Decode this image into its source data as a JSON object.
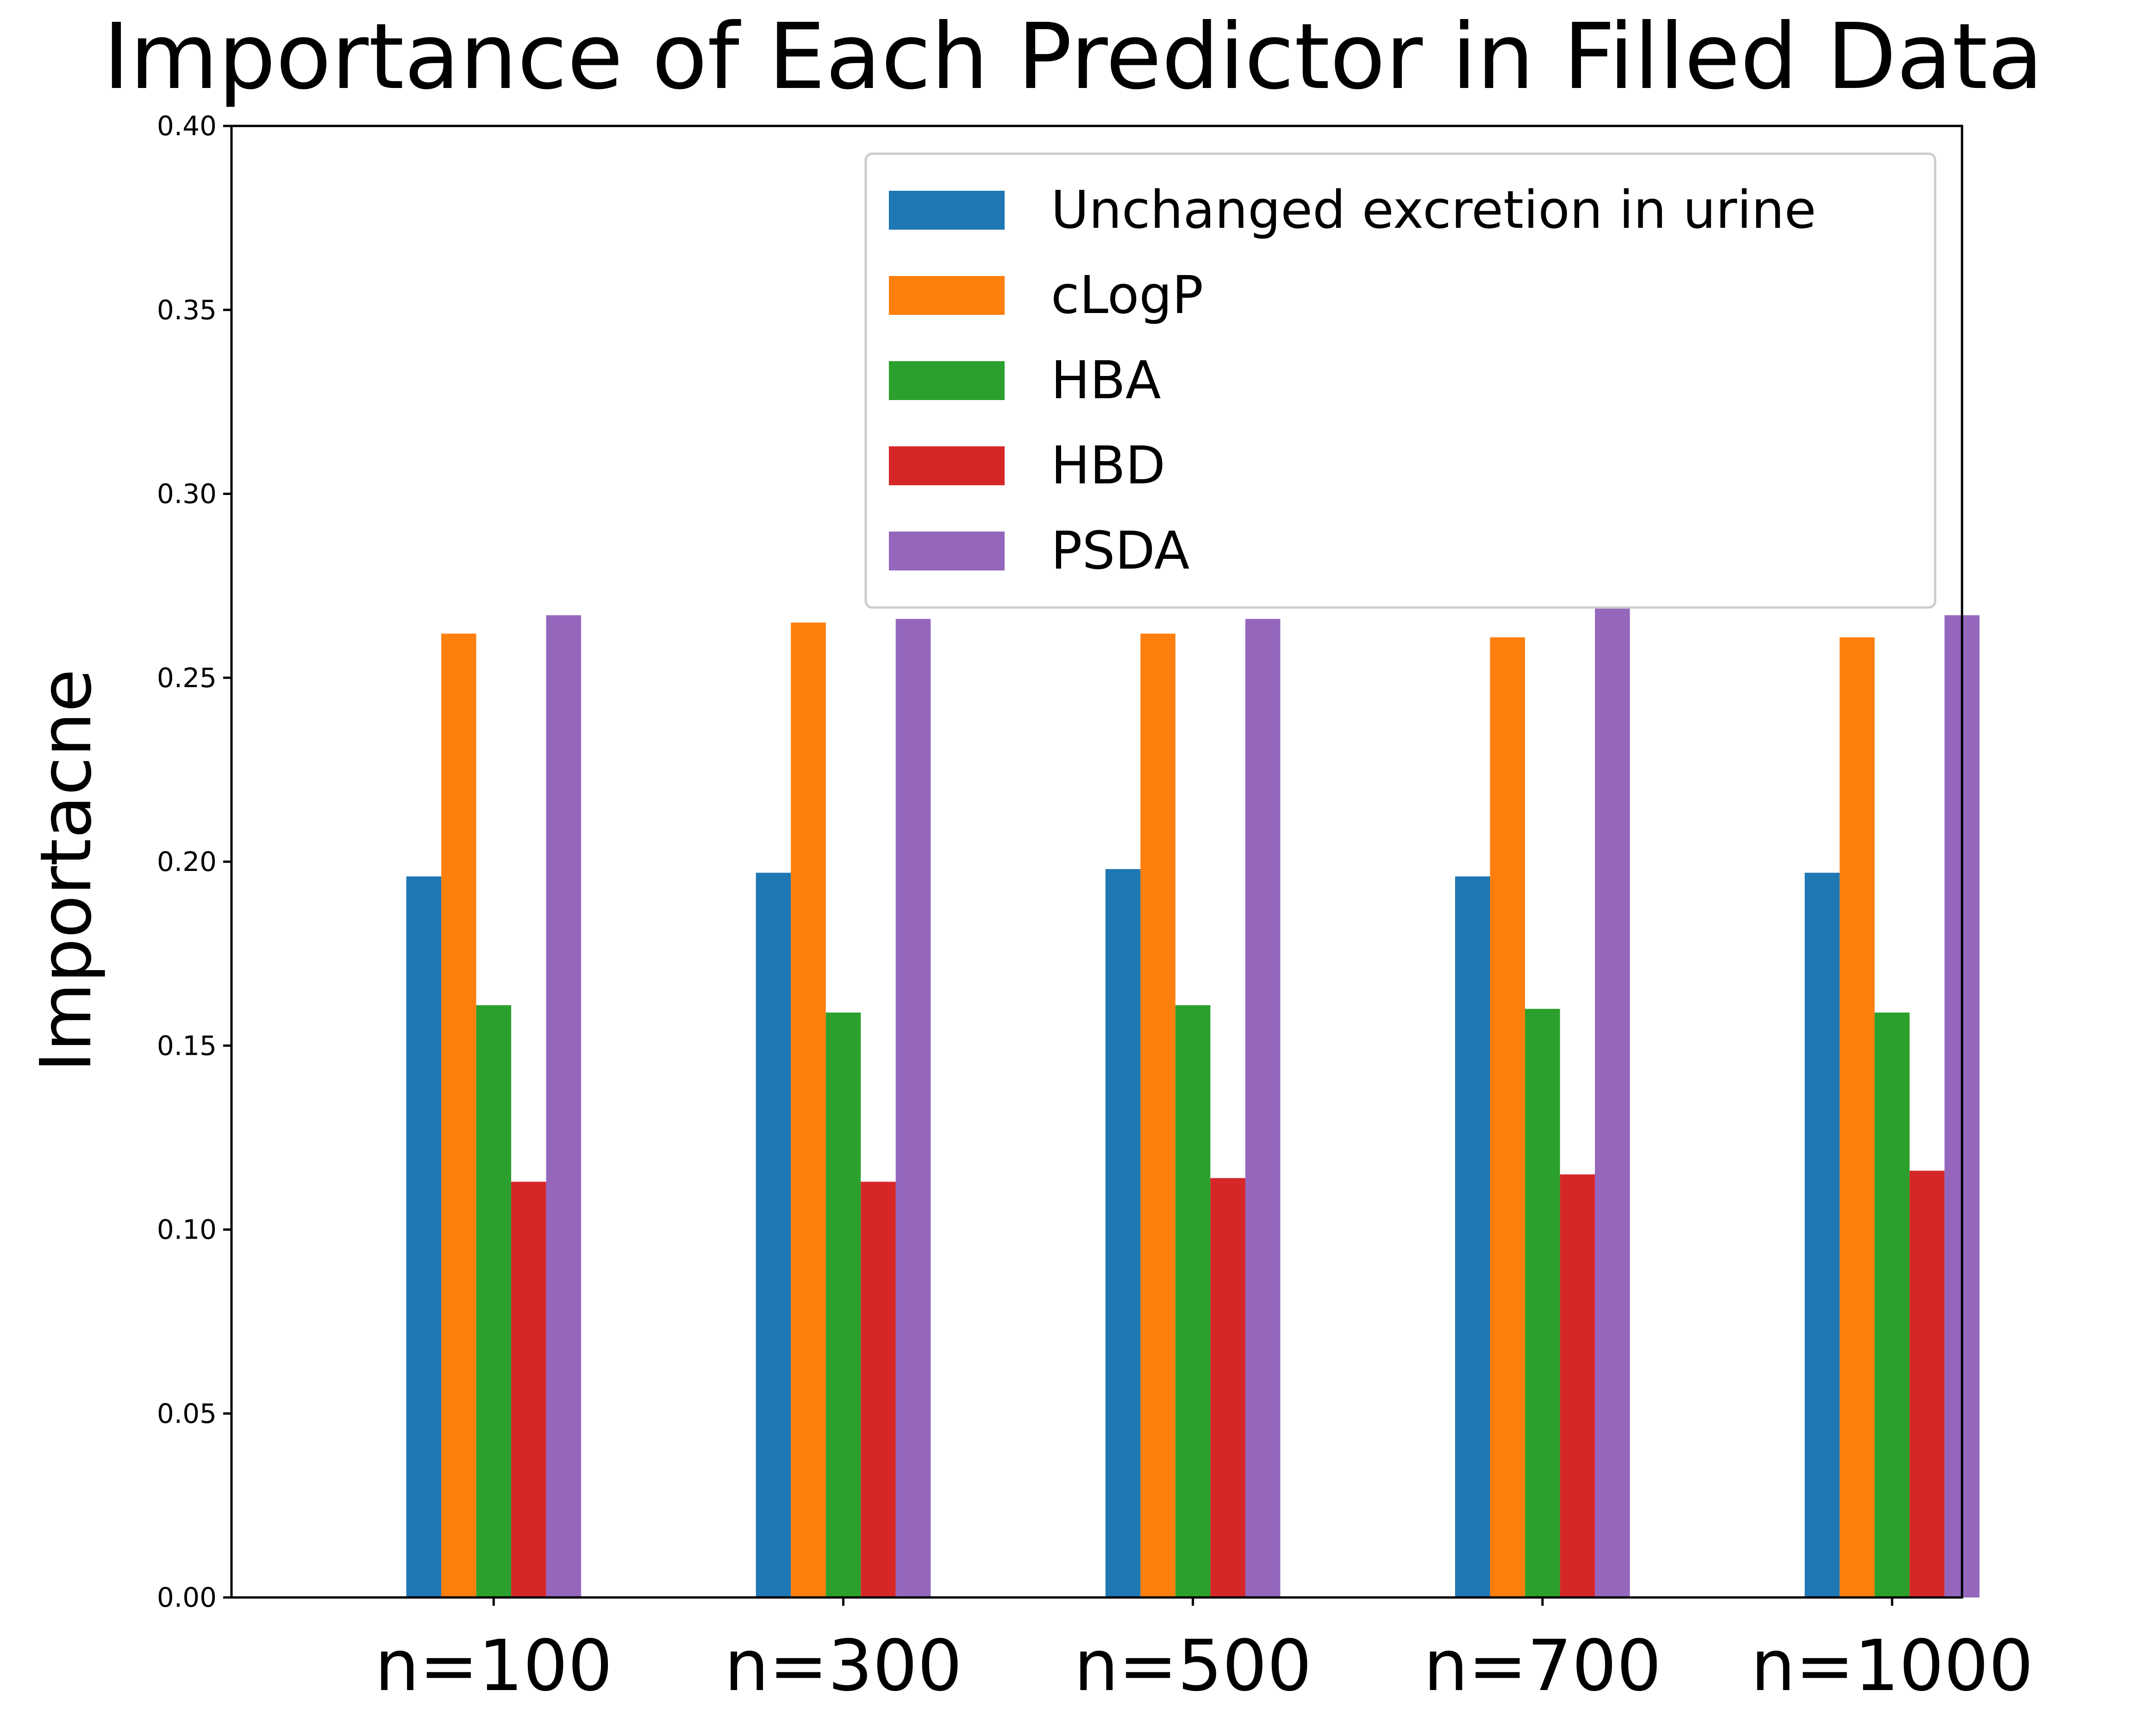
{
  "chart_data": {
    "type": "bar",
    "title": "Importance of Each Predictor in Filled Data",
    "xlabel": "",
    "ylabel": "Importacne",
    "categories": [
      "n=100",
      "n=300",
      "n=500",
      "n=700",
      "n=1000"
    ],
    "ylim": [
      0,
      0.4
    ],
    "yticks": [
      0.0,
      0.05,
      0.1,
      0.15,
      0.2,
      0.25,
      0.3,
      0.35,
      0.4
    ],
    "ytick_labels": [
      "0.00",
      "0.05",
      "0.10",
      "0.15",
      "0.20",
      "0.25",
      "0.30",
      "0.35",
      "0.40"
    ],
    "grid": false,
    "legend_position": "top-right",
    "series": [
      {
        "name": "Unchanged excretion in urine",
        "color": "#1f77b4",
        "values": [
          0.196,
          0.197,
          0.198,
          0.196,
          0.197
        ]
      },
      {
        "name": "cLogP",
        "color": "#ff7f0e",
        "values": [
          0.262,
          0.265,
          0.262,
          0.261,
          0.261
        ]
      },
      {
        "name": "HBA",
        "color": "#2ca02c",
        "values": [
          0.161,
          0.159,
          0.161,
          0.16,
          0.159
        ]
      },
      {
        "name": "HBD",
        "color": "#d62728",
        "values": [
          0.113,
          0.113,
          0.114,
          0.115,
          0.116
        ]
      },
      {
        "name": "PSDA",
        "color": "#9467bd",
        "values": [
          0.267,
          0.266,
          0.266,
          0.269,
          0.267
        ]
      }
    ]
  }
}
